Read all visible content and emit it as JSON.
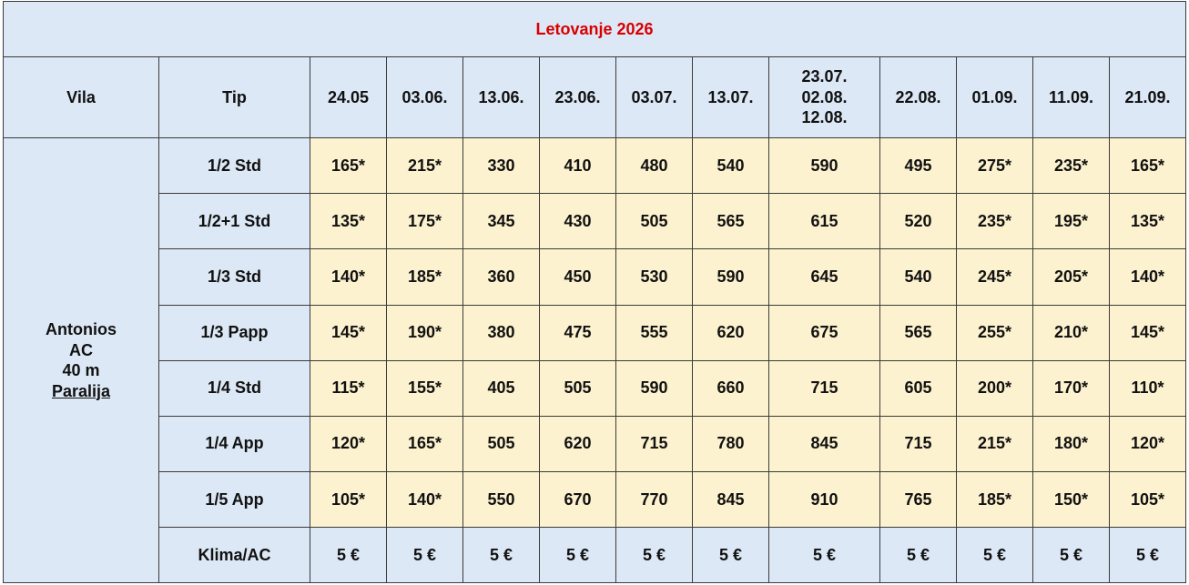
{
  "title": "Letovanje 2026",
  "headers": {
    "vila": "Vila",
    "tip": "Tip",
    "dates": [
      "24.05",
      "03.06.",
      "13.06.",
      "23.06.",
      "03.07.",
      "13.07.",
      [
        "23.07.",
        "02.08.",
        "12.08."
      ],
      "22.08.",
      "01.09.",
      "11.09.",
      "21.09."
    ]
  },
  "villa": {
    "name": "Antonios",
    "ac": "AC",
    "distance": "40 m",
    "location": "Paralija"
  },
  "rows": [
    {
      "tip": "1/2 Std",
      "prices": [
        "165*",
        "215*",
        "330",
        "410",
        "480",
        "540",
        "590",
        "495",
        "275*",
        "235*",
        "165*"
      ]
    },
    {
      "tip": "1/2+1 Std",
      "prices": [
        "135*",
        "175*",
        "345",
        "430",
        "505",
        "565",
        "615",
        "520",
        "235*",
        "195*",
        "135*"
      ]
    },
    {
      "tip": "1/3 Std",
      "prices": [
        "140*",
        "185*",
        "360",
        "450",
        "530",
        "590",
        "645",
        "540",
        "245*",
        "205*",
        "140*"
      ]
    },
    {
      "tip": "1/3 Papp",
      "prices": [
        "145*",
        "190*",
        "380",
        "475",
        "555",
        "620",
        "675",
        "565",
        "255*",
        "210*",
        "145*"
      ]
    },
    {
      "tip": "1/4 Std",
      "prices": [
        "115*",
        "155*",
        "405",
        "505",
        "590",
        "660",
        "715",
        "605",
        "200*",
        "170*",
        "110*"
      ]
    },
    {
      "tip": "1/4 App",
      "prices": [
        "120*",
        "165*",
        "505",
        "620",
        "715",
        "780",
        "845",
        "715",
        "215*",
        "180*",
        "120*"
      ]
    },
    {
      "tip": "1/5 App",
      "prices": [
        "105*",
        "140*",
        "550",
        "670",
        "770",
        "845",
        "910",
        "765",
        "185*",
        "150*",
        "105*"
      ]
    }
  ],
  "klima": {
    "label": "Klima/AC",
    "prices": [
      "5 €",
      "5 €",
      "5 €",
      "5 €",
      "5 €",
      "5 €",
      "5 €",
      "5 €",
      "5 €",
      "5 €",
      "5 €"
    ]
  },
  "colors": {
    "header_bg": "#dde8f6",
    "price_bg": "#fdf2cf",
    "title_color": "#d80000",
    "border": "#3a3a3a"
  }
}
